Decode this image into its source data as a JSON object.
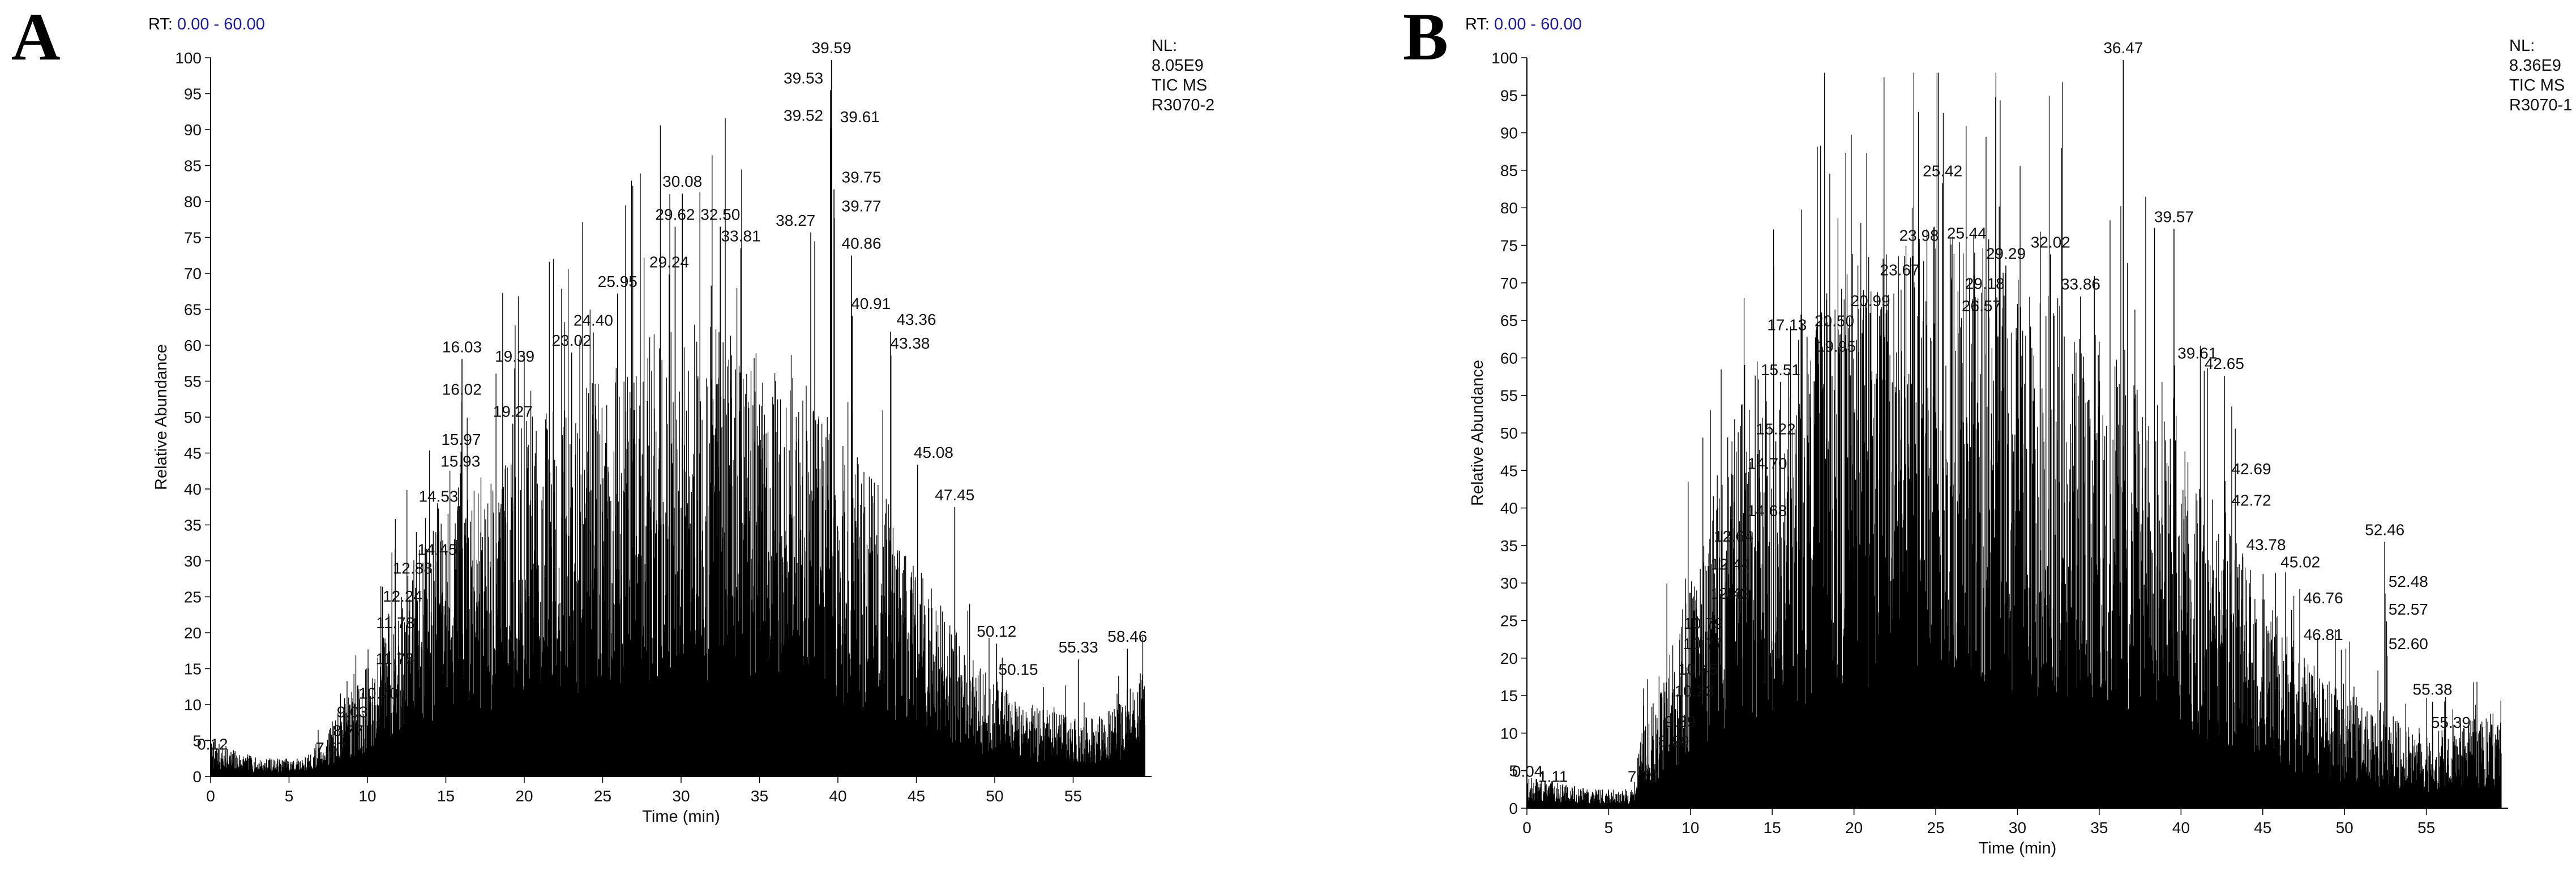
{
  "chart_data": [
    {
      "type": "line",
      "panel_label": "A",
      "rt_prefix": "RT:",
      "rt_range": "0.00 - 60.00",
      "nl_lines": [
        "NL:",
        "8.05E9",
        "TIC  MS",
        "R3070-2"
      ],
      "xlabel": "Time (min)",
      "ylabel": "Relative Abundance",
      "xlim": [
        0,
        60
      ],
      "ylim": [
        0,
        100
      ],
      "x_ticks": [
        0,
        5,
        10,
        15,
        20,
        25,
        30,
        35,
        40,
        45,
        50,
        55
      ],
      "y_ticks": [
        0,
        5,
        10,
        15,
        20,
        25,
        30,
        35,
        40,
        45,
        50,
        55,
        60,
        65,
        70,
        75,
        80,
        85,
        90,
        95,
        100
      ],
      "baseline_seed": 7,
      "profile": [
        [
          0,
          3
        ],
        [
          1,
          2.5
        ],
        [
          3,
          1.5
        ],
        [
          5.5,
          1.5
        ],
        [
          6.5,
          2
        ],
        [
          8,
          5
        ],
        [
          9,
          7
        ],
        [
          10,
          9
        ],
        [
          11,
          12
        ],
        [
          12,
          15
        ],
        [
          13,
          18
        ],
        [
          15,
          22
        ],
        [
          18,
          26
        ],
        [
          20,
          29
        ],
        [
          23,
          31
        ],
        [
          26,
          34
        ],
        [
          28,
          36
        ],
        [
          30,
          37
        ],
        [
          33,
          37
        ],
        [
          35,
          35
        ],
        [
          37,
          33
        ],
        [
          39,
          30
        ],
        [
          41,
          27
        ],
        [
          43,
          23
        ],
        [
          45,
          18
        ],
        [
          47,
          13
        ],
        [
          49,
          9
        ],
        [
          52,
          6
        ],
        [
          55,
          5
        ],
        [
          57,
          5
        ],
        [
          59,
          8
        ],
        [
          60,
          11
        ]
      ],
      "peaks": [
        {
          "label": "0.12",
          "x": 0.12,
          "y": 3.1,
          "lx": 0.12,
          "ly": 3.1
        },
        {
          "label": "7.67",
          "x": 7.67,
          "y": 2.6,
          "lx": 7.67,
          "ly": 2.6
        },
        {
          "label": "8.77",
          "x": 8.77,
          "y": 5.0,
          "lx": 8.77,
          "ly": 5.0
        },
        {
          "label": "9.03",
          "x": 9.03,
          "y": 7.6,
          "lx": 9.03,
          "ly": 7.6
        },
        {
          "label": "10.70",
          "x": 10.7,
          "y": 10.2,
          "lx": 10.7,
          "ly": 10.2
        },
        {
          "label": "11.75",
          "x": 11.75,
          "y": 15.0,
          "lx": 11.75,
          "ly": 15.0
        },
        {
          "label": "11.78",
          "x": 11.78,
          "y": 20.0,
          "lx": 11.78,
          "ly": 20.0
        },
        {
          "label": "12.24",
          "x": 12.24,
          "y": 23.7,
          "lx": 12.24,
          "ly": 23.7
        },
        {
          "label": "12.88",
          "x": 12.88,
          "y": 27.6,
          "lx": 12.88,
          "ly": 27.6
        },
        {
          "label": "14.45",
          "x": 14.45,
          "y": 30.2,
          "lx": 14.45,
          "ly": 30.2
        },
        {
          "label": "14.53",
          "x": 14.53,
          "y": 37.6,
          "lx": 14.53,
          "ly": 37.6
        },
        {
          "label": "15.93",
          "x": 15.93,
          "y": 42.5,
          "lx": 15.93,
          "ly": 42.5
        },
        {
          "label": "15.97",
          "x": 15.97,
          "y": 45.5,
          "lx": 15.97,
          "ly": 45.5
        },
        {
          "label": "16.02",
          "x": 16.02,
          "y": 52.5,
          "lx": 16.02,
          "ly": 52.5
        },
        {
          "label": "16.03",
          "x": 16.03,
          "y": 58.4,
          "lx": 16.03,
          "ly": 58.4
        },
        {
          "label": "19.27",
          "x": 19.27,
          "y": 49.4,
          "lx": 19.27,
          "ly": 49.4
        },
        {
          "label": "19.39",
          "x": 19.39,
          "y": 57.1,
          "lx": 19.39,
          "ly": 57.1
        },
        {
          "label": "23.02",
          "x": 23.02,
          "y": 59.3,
          "lx": 23.02,
          "ly": 59.3
        },
        {
          "label": "24.40",
          "x": 24.4,
          "y": 62.1,
          "lx": 24.4,
          "ly": 62.1
        },
        {
          "label": "25.95",
          "x": 25.95,
          "y": 67.5,
          "lx": 25.95,
          "ly": 67.5
        },
        {
          "label": "29.24",
          "x": 29.24,
          "y": 70.2,
          "lx": 29.24,
          "ly": 70.2
        },
        {
          "label": "29.62",
          "x": 29.62,
          "y": 76.8,
          "lx": 29.62,
          "ly": 76.8
        },
        {
          "label": "30.08",
          "x": 30.08,
          "y": 81.4,
          "lx": 30.08,
          "ly": 81.4
        },
        {
          "label": "32.50",
          "x": 32.5,
          "y": 76.8,
          "lx": 32.5,
          "ly": 76.8
        },
        {
          "label": "33.81",
          "x": 33.81,
          "y": 73.8,
          "lx": 33.81,
          "ly": 73.8
        },
        {
          "label": "38.27",
          "x": 38.27,
          "y": 76.0,
          "lx": 37.3,
          "ly": 76.0
        },
        {
          "label": "39.52",
          "x": 39.52,
          "y": 90.6,
          "lx": 37.8,
          "ly": 90.6
        },
        {
          "label": "39.53",
          "x": 39.53,
          "y": 95.8,
          "lx": 37.8,
          "ly": 95.8
        },
        {
          "label": "39.59",
          "x": 39.59,
          "y": 100,
          "lx": 39.59,
          "ly": 100
        },
        {
          "label": "39.61",
          "x": 39.61,
          "y": 90.4,
          "lx": 41.4,
          "ly": 90.4
        },
        {
          "label": "39.75",
          "x": 39.75,
          "y": 82.0,
          "lx": 41.5,
          "ly": 82.0
        },
        {
          "label": "39.77",
          "x": 39.77,
          "y": 78.0,
          "lx": 41.5,
          "ly": 78.0
        },
        {
          "label": "40.86",
          "x": 40.86,
          "y": 72.8,
          "lx": 41.5,
          "ly": 72.8
        },
        {
          "label": "40.91",
          "x": 40.91,
          "y": 64.4,
          "lx": 42.1,
          "ly": 64.4
        },
        {
          "label": "43.36",
          "x": 43.36,
          "y": 62.2,
          "lx": 45.0,
          "ly": 62.2
        },
        {
          "label": "43.38",
          "x": 43.38,
          "y": 58.9,
          "lx": 44.6,
          "ly": 58.9
        },
        {
          "label": "45.08",
          "x": 45.08,
          "y": 43.7,
          "lx": 46.1,
          "ly": 43.7
        },
        {
          "label": "47.45",
          "x": 47.45,
          "y": 37.8,
          "lx": 47.45,
          "ly": 37.8
        },
        {
          "label": "50.12",
          "x": 50.12,
          "y": 18.8,
          "lx": 50.12,
          "ly": 18.8
        },
        {
          "label": "50.15",
          "x": 50.15,
          "y": 13.5,
          "lx": 51.5,
          "ly": 13.5
        },
        {
          "label": "55.33",
          "x": 55.33,
          "y": 16.6,
          "lx": 55.33,
          "ly": 16.6
        },
        {
          "label": "58.46",
          "x": 58.46,
          "y": 18.1,
          "lx": 58.46,
          "ly": 18.1
        }
      ]
    },
    {
      "type": "line",
      "panel_label": "B",
      "rt_prefix": "RT:",
      "rt_range": "0.00 - 60.00",
      "nl_lines": [
        "NL:",
        "8.36E9",
        "TIC  MS",
        "R3070-1"
      ],
      "xlabel": "Time (min)",
      "ylabel": "Relative Abundance",
      "xlim": [
        0,
        60
      ],
      "ylim": [
        0,
        100
      ],
      "x_ticks": [
        0,
        5,
        10,
        15,
        20,
        25,
        30,
        35,
        40,
        45,
        50,
        55
      ],
      "y_ticks": [
        0,
        5,
        10,
        15,
        20,
        25,
        30,
        35,
        40,
        45,
        50,
        55,
        60,
        65,
        70,
        75,
        80,
        85,
        90,
        95,
        100
      ],
      "baseline_seed": 13,
      "profile": [
        [
          0,
          2.5
        ],
        [
          2,
          2
        ],
        [
          4,
          1.5
        ],
        [
          6.5,
          1.5
        ],
        [
          7,
          6
        ],
        [
          8,
          10
        ],
        [
          9,
          14
        ],
        [
          10,
          18
        ],
        [
          11,
          23
        ],
        [
          12,
          28
        ],
        [
          13,
          32
        ],
        [
          15,
          37
        ],
        [
          18,
          41
        ],
        [
          20,
          43
        ],
        [
          23,
          45
        ],
        [
          25,
          46
        ],
        [
          28,
          45
        ],
        [
          30,
          42
        ],
        [
          33,
          40
        ],
        [
          35,
          37
        ],
        [
          37,
          34
        ],
        [
          39,
          31
        ],
        [
          41,
          27
        ],
        [
          43,
          22
        ],
        [
          45,
          17
        ],
        [
          47,
          13
        ],
        [
          49,
          10
        ],
        [
          52,
          8
        ],
        [
          55,
          6
        ],
        [
          58,
          7
        ],
        [
          60,
          9
        ]
      ],
      "peaks": [
        {
          "label": "0.04",
          "x": 0.04,
          "y": 3.6,
          "lx": 0.04,
          "ly": 3.6
        },
        {
          "label": "1.11",
          "x": 1.11,
          "y": 2.9,
          "lx": 1.6,
          "ly": 2.9
        },
        {
          "label": "7.79",
          "x": 7.79,
          "y": 2.9,
          "lx": 7.1,
          "ly": 2.9
        },
        {
          "label": "8.99",
          "x": 8.99,
          "y": 7.6,
          "lx": 8.99,
          "ly": 7.6
        },
        {
          "label": "9.39",
          "x": 9.39,
          "y": 10.2,
          "lx": 9.39,
          "ly": 10.2
        },
        {
          "label": "10.23",
          "x": 10.23,
          "y": 14.3,
          "lx": 10.23,
          "ly": 14.3
        },
        {
          "label": "10.45",
          "x": 10.45,
          "y": 17.2,
          "lx": 10.45,
          "ly": 17.2
        },
        {
          "label": "10.77",
          "x": 10.77,
          "y": 20.6,
          "lx": 10.77,
          "ly": 20.6
        },
        {
          "label": "10.79",
          "x": 10.79,
          "y": 23.3,
          "lx": 10.79,
          "ly": 23.3
        },
        {
          "label": "12.42",
          "x": 12.42,
          "y": 27.3,
          "lx": 12.42,
          "ly": 27.3
        },
        {
          "label": "12.44",
          "x": 12.44,
          "y": 31.2,
          "lx": 12.44,
          "ly": 31.2
        },
        {
          "label": "12.64",
          "x": 12.64,
          "y": 34.9,
          "lx": 12.64,
          "ly": 34.9
        },
        {
          "label": "14.68",
          "x": 14.68,
          "y": 38.3,
          "lx": 14.68,
          "ly": 38.3
        },
        {
          "label": "14.70",
          "x": 14.7,
          "y": 44.6,
          "lx": 14.7,
          "ly": 44.6
        },
        {
          "label": "15.22",
          "x": 15.22,
          "y": 49.2,
          "lx": 15.22,
          "ly": 49.2
        },
        {
          "label": "15.51",
          "x": 15.51,
          "y": 57.1,
          "lx": 15.51,
          "ly": 57.1
        },
        {
          "label": "17.13",
          "x": 17.13,
          "y": 63.1,
          "lx": 15.9,
          "ly": 63.1
        },
        {
          "label": "19.95",
          "x": 19.95,
          "y": 60.2,
          "lx": 18.9,
          "ly": 60.2
        },
        {
          "label": "20.50",
          "x": 20.5,
          "y": 63.6,
          "lx": 18.8,
          "ly": 63.6
        },
        {
          "label": "20.99",
          "x": 20.99,
          "y": 66.3,
          "lx": 21.0,
          "ly": 66.3
        },
        {
          "label": "23.67",
          "x": 23.67,
          "y": 70.4,
          "lx": 22.8,
          "ly": 70.4
        },
        {
          "label": "23.98",
          "x": 23.98,
          "y": 75.0,
          "lx": 23.98,
          "ly": 75.0
        },
        {
          "label": "25.42",
          "x": 25.42,
          "y": 83.6,
          "lx": 25.42,
          "ly": 83.6
        },
        {
          "label": "25.44",
          "x": 25.44,
          "y": 75.3,
          "lx": 26.9,
          "ly": 75.3
        },
        {
          "label": "26.57",
          "x": 26.57,
          "y": 65.6,
          "lx": 27.8,
          "ly": 65.6
        },
        {
          "label": "29.18",
          "x": 29.18,
          "y": 68.6,
          "lx": 28.0,
          "ly": 68.6
        },
        {
          "label": "29.29",
          "x": 29.29,
          "y": 72.6,
          "lx": 29.29,
          "ly": 72.6
        },
        {
          "label": "32.02",
          "x": 32.02,
          "y": 74.1,
          "lx": 32.02,
          "ly": 74.1
        },
        {
          "label": "33.86",
          "x": 33.86,
          "y": 68.5,
          "lx": 33.86,
          "ly": 68.5
        },
        {
          "label": "36.47",
          "x": 36.47,
          "y": 100,
          "lx": 36.47,
          "ly": 100
        },
        {
          "label": "39.57",
          "x": 39.57,
          "y": 77.5,
          "lx": 39.57,
          "ly": 77.5
        },
        {
          "label": "39.61",
          "x": 39.61,
          "y": 59.3,
          "lx": 41.0,
          "ly": 59.3
        },
        {
          "label": "42.65",
          "x": 42.65,
          "y": 57.9,
          "lx": 42.65,
          "ly": 57.9
        },
        {
          "label": "42.69",
          "x": 42.69,
          "y": 43.9,
          "lx": 44.3,
          "ly": 43.9
        },
        {
          "label": "42.72",
          "x": 42.72,
          "y": 39.7,
          "lx": 44.3,
          "ly": 39.7
        },
        {
          "label": "43.78",
          "x": 43.78,
          "y": 33.8,
          "lx": 45.2,
          "ly": 33.8
        },
        {
          "label": "45.02",
          "x": 45.02,
          "y": 31.5,
          "lx": 47.3,
          "ly": 31.5
        },
        {
          "label": "46.76",
          "x": 46.76,
          "y": 26.7,
          "lx": 48.7,
          "ly": 26.7
        },
        {
          "label": "46.81",
          "x": 46.81,
          "y": 21.8,
          "lx": 48.7,
          "ly": 21.8
        },
        {
          "label": "52.46",
          "x": 52.46,
          "y": 35.8,
          "lx": 52.46,
          "ly": 35.8
        },
        {
          "label": "52.48",
          "x": 52.48,
          "y": 28.9,
          "lx": 53.9,
          "ly": 28.9
        },
        {
          "label": "52.57",
          "x": 52.57,
          "y": 25.2,
          "lx": 53.9,
          "ly": 25.2
        },
        {
          "label": "52.60",
          "x": 52.6,
          "y": 20.6,
          "lx": 53.9,
          "ly": 20.6
        },
        {
          "label": "55.38",
          "x": 55.38,
          "y": 14.5,
          "lx": 55.38,
          "ly": 14.5
        },
        {
          "label": "55.39",
          "x": 55.39,
          "y": 10.1,
          "lx": 56.5,
          "ly": 10.1
        }
      ]
    }
  ]
}
